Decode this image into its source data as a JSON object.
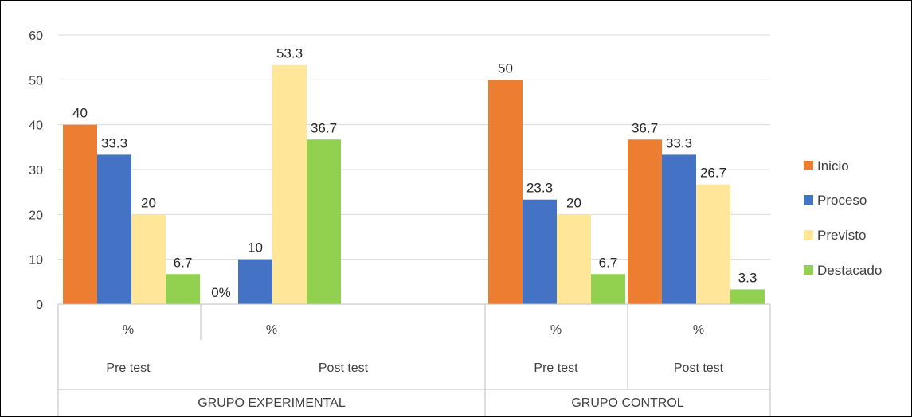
{
  "chart_data": {
    "type": "bar",
    "ylim": [
      0,
      60
    ],
    "yticks": [
      0,
      10,
      20,
      30,
      40,
      50,
      60
    ],
    "grid": true,
    "legend_position": "right",
    "groups": [
      {
        "label": "GRUPO EXPERIMENTAL",
        "subgroups": [
          {
            "phase": "Pre test",
            "unit": "%"
          },
          {
            "phase": "Post test",
            "unit": "%"
          }
        ]
      },
      {
        "label": "GRUPO CONTROL",
        "subgroups": [
          {
            "phase": "Pre test",
            "unit": "%"
          },
          {
            "phase": "Post test",
            "unit": "%"
          }
        ]
      }
    ],
    "series": [
      {
        "name": "Inicio",
        "color": "#ED7D31",
        "values": [
          40,
          0,
          50,
          36.7
        ],
        "labels": [
          "40",
          "0%",
          "50",
          "36.7"
        ]
      },
      {
        "name": "Proceso",
        "color": "#4472C4",
        "values": [
          33.3,
          10,
          23.3,
          33.3
        ],
        "labels": [
          "33.3",
          "10",
          "23.3",
          "33.3"
        ]
      },
      {
        "name": "Previsto",
        "color": "#FFE699",
        "values": [
          20,
          53.3,
          20,
          26.7
        ],
        "labels": [
          "20",
          "53.3",
          "20",
          "26.7"
        ]
      },
      {
        "name": "Destacado",
        "color": "#92D050",
        "values": [
          6.7,
          36.7,
          6.7,
          3.3
        ],
        "labels": [
          "6.7",
          "36.7",
          "6.7",
          "3.3"
        ]
      }
    ]
  }
}
